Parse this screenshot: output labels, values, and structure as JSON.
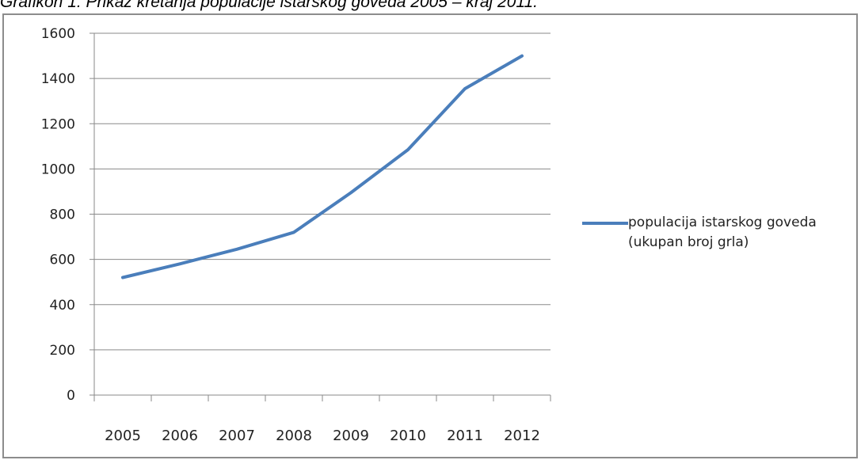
{
  "caption": "Grafikon 1: Prikaz kretanja populacije istarskog goveda 2005 – kraj 2011.",
  "chart_data": {
    "type": "line",
    "title": "",
    "xlabel": "",
    "ylabel": "",
    "categories": [
      "2005",
      "2006",
      "2007",
      "2008",
      "2009",
      "2010",
      "2011",
      "2012"
    ],
    "ylim": [
      0,
      1600
    ],
    "yticks": [
      0,
      200,
      400,
      600,
      800,
      1000,
      1200,
      1400,
      1600
    ],
    "grid": true,
    "legend_placement": "right",
    "series": [
      {
        "name": "populacija istarskog goveda (ukupan broj grla)",
        "color": "#4a7ebb",
        "values": [
          520,
          580,
          645,
          720,
          895,
          1085,
          1355,
          1500
        ]
      }
    ]
  }
}
